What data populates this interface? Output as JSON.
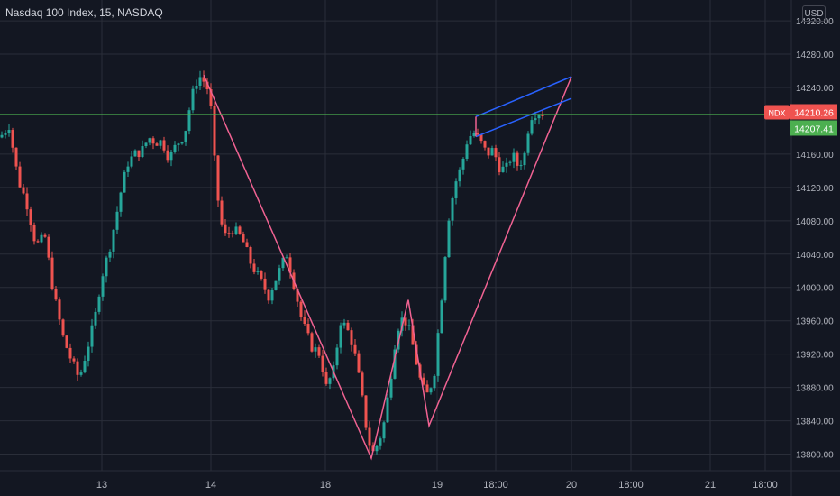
{
  "header": {
    "title": "Nasdaq 100 Index, 15, NASDAQ"
  },
  "currency": "USD",
  "colors": {
    "background": "#131722",
    "up": "#26a69a",
    "down": "#ef5350",
    "pattern": "#f06292",
    "channel": "#2962ff",
    "level": "#4caf50",
    "grid": "#2a2e39",
    "text": "#b2b5be"
  },
  "chart_data": {
    "type": "candlestick",
    "title": "Nasdaq 100 Index, 15, NASDAQ",
    "symbol": "NDX",
    "last_price": 14210.26,
    "level_price": 14207.41,
    "ylim": [
      13780,
      14345
    ],
    "y_ticks": [
      13800,
      13840,
      13880,
      13920,
      13960,
      14000,
      14040,
      14080,
      14120,
      14160,
      14240,
      14280,
      14320
    ],
    "x_ticks": [
      "13",
      "14",
      "18",
      "19",
      "18:00",
      "20",
      "18:00",
      "21",
      "18:00"
    ],
    "close_path": [
      [
        0,
        14180
      ],
      [
        10,
        14195
      ],
      [
        20,
        14130
      ],
      [
        30,
        14100
      ],
      [
        40,
        14050
      ],
      [
        50,
        14060
      ],
      [
        60,
        13990
      ],
      [
        70,
        13940
      ],
      [
        80,
        13910
      ],
      [
        88,
        13890
      ],
      [
        95,
        13920
      ],
      [
        105,
        13960
      ],
      [
        112,
        14010
      ],
      [
        120,
        14040
      ],
      [
        128,
        14080
      ],
      [
        135,
        14120
      ],
      [
        142,
        14150
      ],
      [
        150,
        14160
      ],
      [
        158,
        14165
      ],
      [
        165,
        14180
      ],
      [
        172,
        14175
      ],
      [
        180,
        14175
      ],
      [
        188,
        14155
      ],
      [
        195,
        14170
      ],
      [
        205,
        14185
      ],
      [
        212,
        14225
      ],
      [
        220,
        14255
      ],
      [
        228,
        14245
      ],
      [
        233,
        14230
      ],
      [
        240,
        14120
      ],
      [
        248,
        14060
      ],
      [
        258,
        14070
      ],
      [
        268,
        14060
      ],
      [
        278,
        14030
      ],
      [
        288,
        14010
      ],
      [
        298,
        13990
      ],
      [
        308,
        14015
      ],
      [
        318,
        14040
      ],
      [
        325,
        14010
      ],
      [
        335,
        13960
      ],
      [
        345,
        13930
      ],
      [
        355,
        13920
      ],
      [
        362,
        13880
      ],
      [
        370,
        13900
      ],
      [
        378,
        13960
      ],
      [
        385,
        13950
      ],
      [
        392,
        13930
      ],
      [
        400,
        13880
      ],
      [
        408,
        13820
      ],
      [
        413,
        13800
      ],
      [
        418,
        13810
      ],
      [
        425,
        13830
      ],
      [
        432,
        13880
      ],
      [
        440,
        13950
      ],
      [
        448,
        13965
      ],
      [
        455,
        13945
      ],
      [
        462,
        13910
      ],
      [
        468,
        13880
      ],
      [
        475,
        13870
      ],
      [
        482,
        13900
      ],
      [
        490,
        13990
      ],
      [
        497,
        14080
      ],
      [
        505,
        14125
      ],
      [
        512,
        14145
      ],
      [
        519,
        14180
      ],
      [
        526,
        14185
      ],
      [
        533,
        14175
      ],
      [
        540,
        14160
      ],
      [
        547,
        14165
      ],
      [
        554,
        14145
      ],
      [
        561,
        14140
      ],
      [
        568,
        14160
      ],
      [
        575,
        14145
      ],
      [
        582,
        14160
      ],
      [
        588,
        14205
      ],
      [
        594,
        14210
      ],
      [
        600,
        14210
      ],
      [
        604,
        14210
      ]
    ],
    "x_domain": [
      0,
      604
    ],
    "annotations": [
      {
        "type": "zigzag",
        "points": [
          [
            226,
            14255
          ],
          [
            412,
            13795
          ],
          [
            453,
            13985
          ],
          [
            476,
            13834
          ],
          [
            634,
            14253
          ]
        ]
      },
      {
        "type": "channel",
        "lines": [
          [
            [
              528,
              14205
            ],
            [
              634,
              14253
            ]
          ],
          [
            [
              528,
              14181
            ],
            [
              634,
              14227
            ]
          ]
        ]
      },
      {
        "type": "hline",
        "price": 14207.41
      }
    ]
  }
}
